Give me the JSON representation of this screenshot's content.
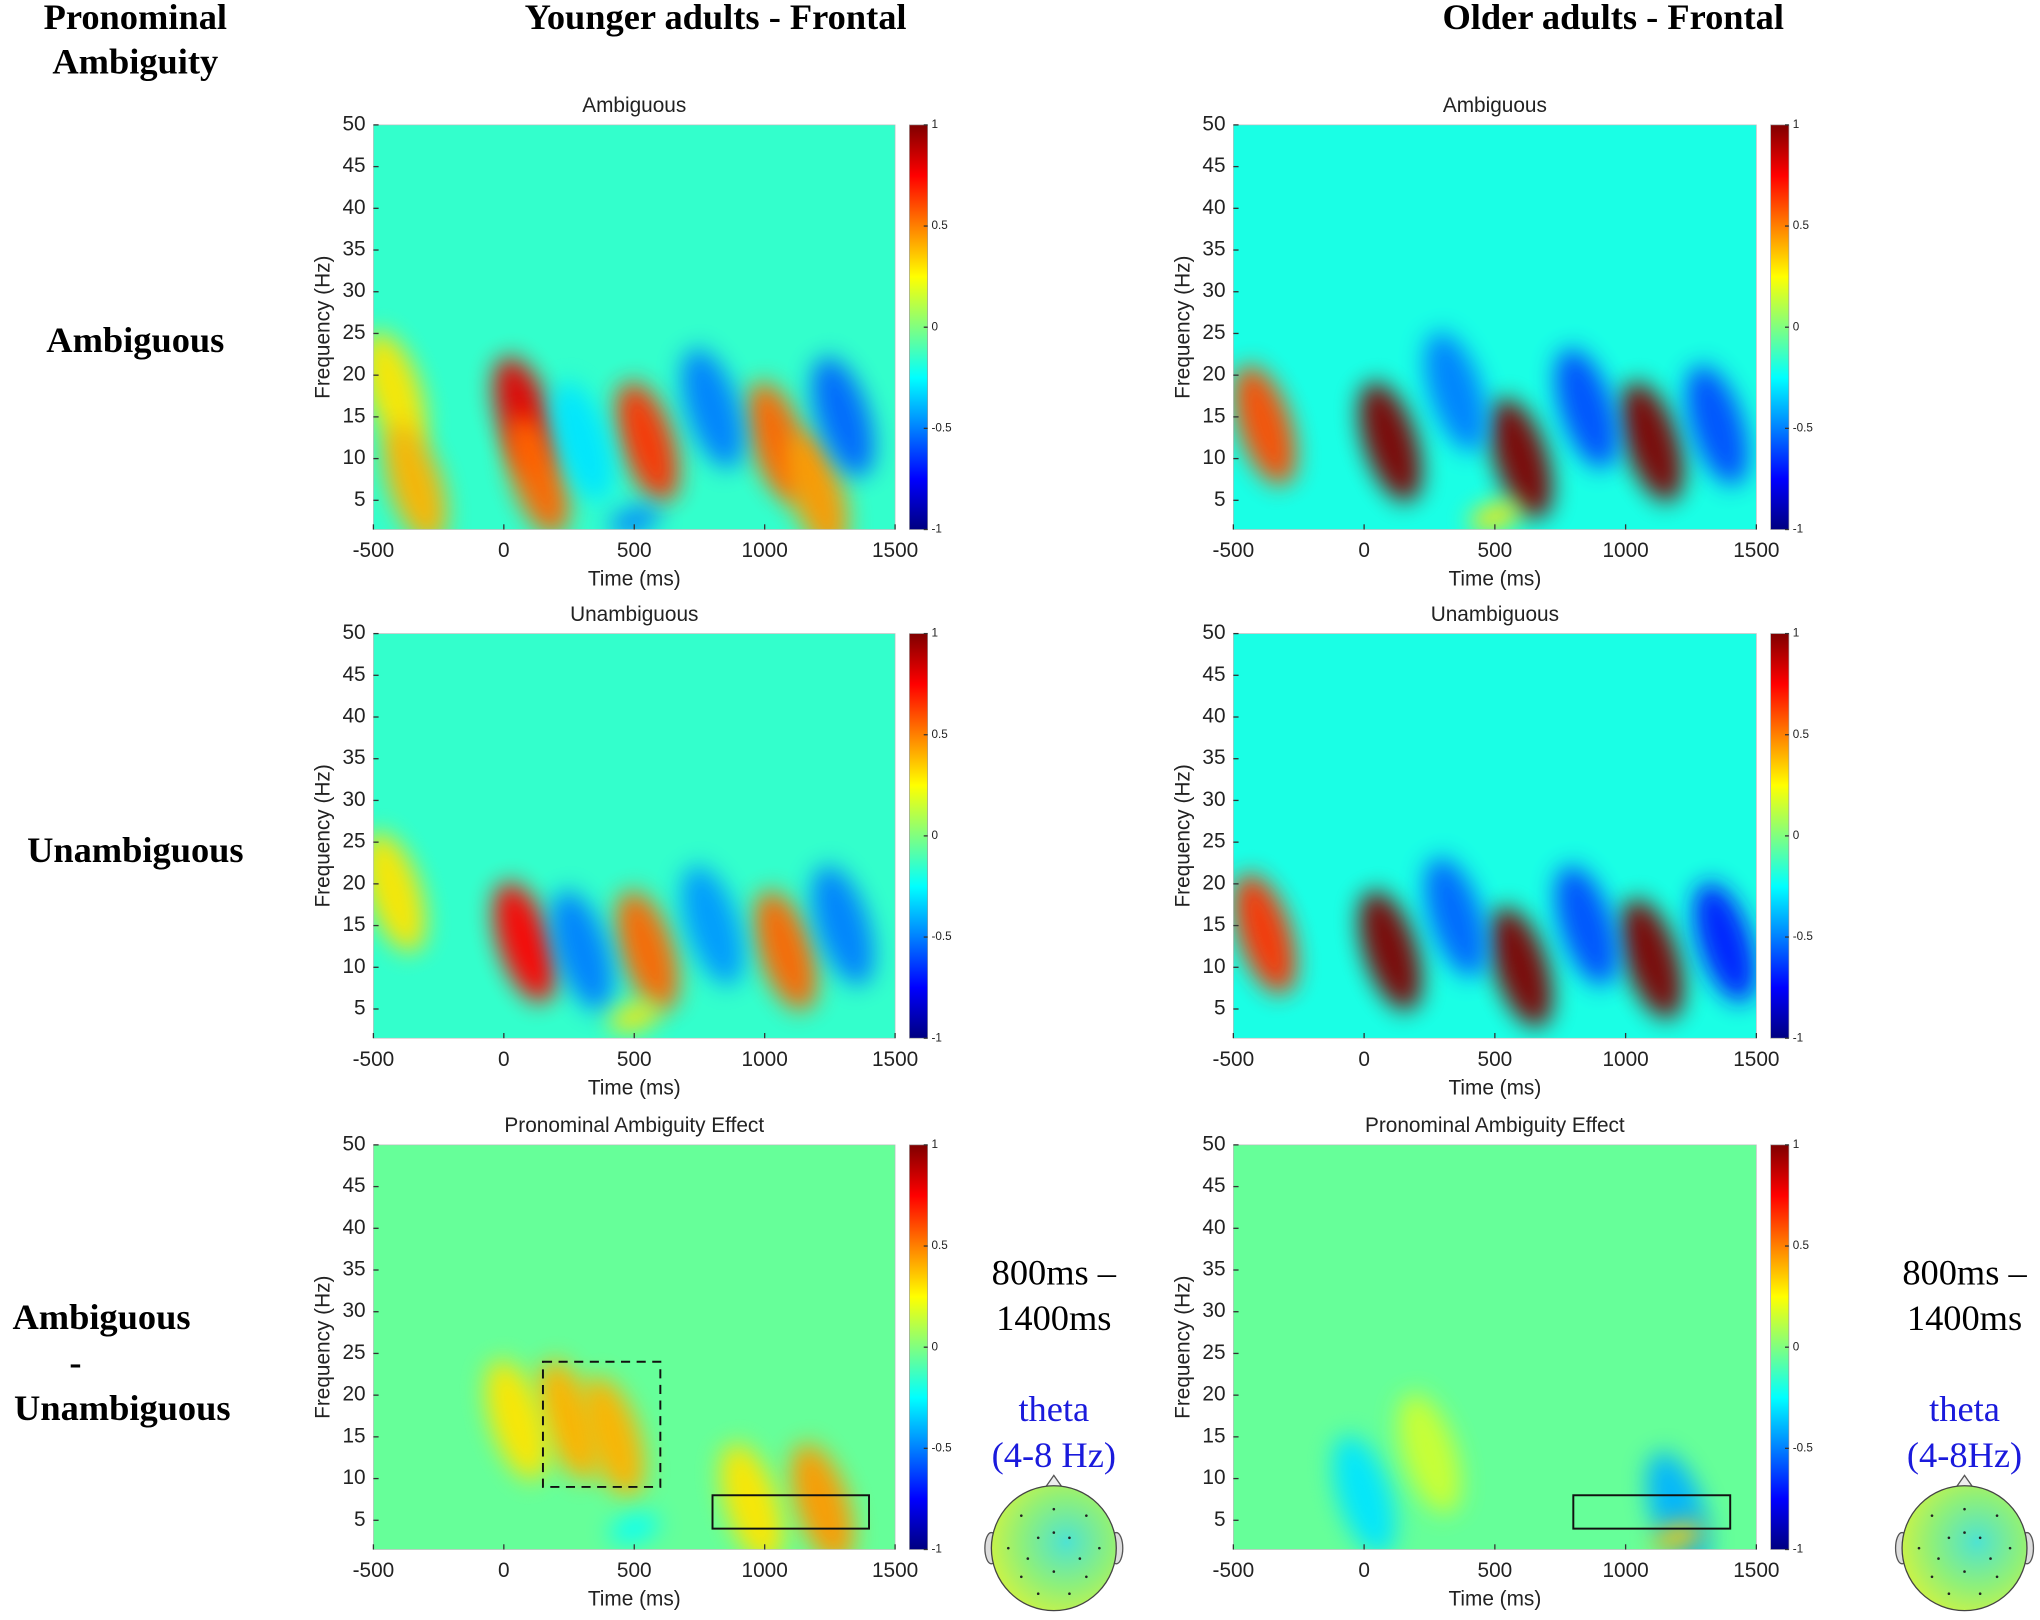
{
  "headers": {
    "corner": [
      "Pronominal",
      "Ambiguity"
    ],
    "columns": [
      "Younger adults - Frontal",
      "Older adults - Frontal"
    ],
    "rows": [
      [
        "Ambiguous"
      ],
      [
        "Unambiguous"
      ],
      [
        "Ambiguous",
        "-",
        "Unambiguous"
      ]
    ]
  },
  "topographies": [
    {
      "window": [
        "800ms –",
        "1400ms"
      ],
      "band": [
        "theta",
        "(4-8 Hz)"
      ]
    },
    {
      "window": [
        "800ms –",
        "1400ms"
      ],
      "band": [
        "theta",
        "(4-8Hz)"
      ]
    }
  ],
  "chart_data": [
    {
      "type": "heatmap",
      "title": "Ambiguous",
      "xlabel": "Time (ms)",
      "ylabel": "Frequency (Hz)",
      "xlim": [
        -500,
        1500
      ],
      "xticks": [
        -500,
        0,
        500,
        1000,
        1500
      ],
      "ylim": [
        1.5,
        50
      ],
      "yticks": [
        5,
        10,
        15,
        20,
        25,
        30,
        35,
        40,
        45,
        50
      ],
      "clim": [
        -1,
        1
      ],
      "cticks": [
        -1,
        -0.5,
        0,
        0.5,
        1
      ],
      "colormap": "jet",
      "background": -0.15,
      "blobs": [
        {
          "t": 80,
          "f": 15,
          "value": 0.8
        },
        {
          "t": 130,
          "f": 8,
          "value": 0.55
        },
        {
          "t": 550,
          "f": 12,
          "value": 0.65
        },
        {
          "t": 1050,
          "f": 12,
          "value": 0.55
        },
        {
          "t": 1200,
          "f": 6,
          "value": 0.45
        },
        {
          "t": -420,
          "f": 18,
          "value": 0.3
        },
        {
          "t": -340,
          "f": 7,
          "value": 0.4
        },
        {
          "t": 800,
          "f": 16,
          "value": -0.5
        },
        {
          "t": 1300,
          "f": 15,
          "value": -0.55
        },
        {
          "t": 300,
          "f": 12,
          "value": -0.3
        },
        {
          "t": 500,
          "f": 2.5,
          "value": -0.5
        }
      ]
    },
    {
      "type": "heatmap",
      "title": "Ambiguous",
      "xlabel": "Time (ms)",
      "ylabel": "Frequency (Hz)",
      "xlim": [
        -500,
        1500
      ],
      "xticks": [
        -500,
        0,
        500,
        1000,
        1500
      ],
      "ylim": [
        1.5,
        50
      ],
      "yticks": [
        5,
        10,
        15,
        20,
        25,
        30,
        35,
        40,
        45,
        50
      ],
      "clim": [
        -1,
        1
      ],
      "cticks": [
        -1,
        -0.5,
        0,
        0.5,
        1
      ],
      "colormap": "jet",
      "background": -0.2,
      "blobs": [
        {
          "t": -380,
          "f": 14,
          "value": 0.6
        },
        {
          "t": 100,
          "f": 12,
          "value": 1
        },
        {
          "t": 600,
          "f": 10,
          "value": 1
        },
        {
          "t": 1100,
          "f": 12,
          "value": 1
        },
        {
          "t": 350,
          "f": 18,
          "value": -0.5
        },
        {
          "t": 850,
          "f": 16,
          "value": -0.6
        },
        {
          "t": 1350,
          "f": 14,
          "value": -0.6
        },
        {
          "t": 500,
          "f": 3,
          "value": 0.3
        }
      ]
    },
    {
      "type": "heatmap",
      "title": "Unambiguous",
      "xlabel": "Time (ms)",
      "ylabel": "Frequency (Hz)",
      "xlim": [
        -500,
        1500
      ],
      "xticks": [
        -500,
        0,
        500,
        1000,
        1500
      ],
      "ylim": [
        1.5,
        50
      ],
      "yticks": [
        5,
        10,
        15,
        20,
        25,
        30,
        35,
        40,
        45,
        50
      ],
      "clim": [
        -1,
        1
      ],
      "cticks": [
        -1,
        -0.5,
        0,
        0.5,
        1
      ],
      "colormap": "jet",
      "background": -0.15,
      "blobs": [
        {
          "t": 80,
          "f": 13,
          "value": 0.75
        },
        {
          "t": 550,
          "f": 12,
          "value": 0.55
        },
        {
          "t": 1080,
          "f": 12,
          "value": 0.55
        },
        {
          "t": -420,
          "f": 19,
          "value": 0.3
        },
        {
          "t": 300,
          "f": 12,
          "value": -0.5
        },
        {
          "t": 800,
          "f": 15,
          "value": -0.45
        },
        {
          "t": 1300,
          "f": 15,
          "value": -0.5
        },
        {
          "t": 500,
          "f": 4,
          "value": 0.3
        }
      ]
    },
    {
      "type": "heatmap",
      "title": "Unambiguous",
      "xlabel": "Time (ms)",
      "ylabel": "Frequency (Hz)",
      "xlim": [
        -500,
        1500
      ],
      "xticks": [
        -500,
        0,
        500,
        1000,
        1500
      ],
      "ylim": [
        1.5,
        50
      ],
      "yticks": [
        5,
        10,
        15,
        20,
        25,
        30,
        35,
        40,
        45,
        50
      ],
      "clim": [
        -1,
        1
      ],
      "cticks": [
        -1,
        -0.5,
        0,
        0.5,
        1
      ],
      "colormap": "jet",
      "background": -0.2,
      "blobs": [
        {
          "t": -380,
          "f": 14,
          "value": 0.65
        },
        {
          "t": 100,
          "f": 12,
          "value": 1
        },
        {
          "t": 600,
          "f": 10,
          "value": 1
        },
        {
          "t": 1100,
          "f": 11,
          "value": 1
        },
        {
          "t": 350,
          "f": 16,
          "value": -0.55
        },
        {
          "t": 850,
          "f": 15,
          "value": -0.6
        },
        {
          "t": 1380,
          "f": 13,
          "value": -0.7
        }
      ]
    },
    {
      "type": "heatmap",
      "title": "Pronominal Ambiguity Effect",
      "xlabel": "Time (ms)",
      "ylabel": "Frequency (Hz)",
      "xlim": [
        -500,
        1500
      ],
      "xticks": [
        -500,
        0,
        500,
        1000,
        1500
      ],
      "ylim": [
        1.5,
        50
      ],
      "yticks": [
        5,
        10,
        15,
        20,
        25,
        30,
        35,
        40,
        45,
        50
      ],
      "clim": [
        -1,
        1
      ],
      "cticks": [
        -1,
        -0.5,
        0,
        0.5,
        1
      ],
      "colormap": "jet",
      "background": -0.05,
      "blobs": [
        {
          "t": 250,
          "f": 17,
          "value": 0.4
        },
        {
          "t": 420,
          "f": 15,
          "value": 0.4
        },
        {
          "t": 50,
          "f": 17,
          "value": 0.3
        },
        {
          "t": 1220,
          "f": 7,
          "value": 0.45
        },
        {
          "t": 950,
          "f": 7,
          "value": 0.3
        },
        {
          "t": 500,
          "f": 4,
          "value": -0.25
        }
      ]
    },
    {
      "type": "heatmap",
      "title": "Pronominal Ambiguity Effect",
      "xlabel": "Time (ms)",
      "ylabel": "Frequency (Hz)",
      "xlim": [
        -500,
        1500
      ],
      "xticks": [
        -500,
        0,
        500,
        1000,
        1500
      ],
      "ylim": [
        1.5,
        50
      ],
      "yticks": [
        5,
        10,
        15,
        20,
        25,
        30,
        35,
        40,
        45,
        50
      ],
      "clim": [
        -1,
        1
      ],
      "cticks": [
        -1,
        -0.5,
        0,
        0.5,
        1
      ],
      "colormap": "jet",
      "background": -0.05,
      "blobs": [
        {
          "t": 0,
          "f": 8,
          "value": -0.3
        },
        {
          "t": 1200,
          "f": 6,
          "value": -0.4
        },
        {
          "t": 1200,
          "f": 3,
          "value": 0.35
        },
        {
          "t": 250,
          "f": 13,
          "value": 0.15
        }
      ]
    }
  ],
  "boxes": [
    [
      {
        "x": [
          150,
          600
        ],
        "y": [
          9,
          24
        ],
        "dashed": true
      },
      {
        "x": [
          800,
          1400
        ],
        "y": [
          4,
          8
        ],
        "dashed": false
      }
    ],
    [
      {
        "x": [
          800,
          1400
        ],
        "y": [
          4,
          8
        ],
        "dashed": false
      }
    ]
  ]
}
